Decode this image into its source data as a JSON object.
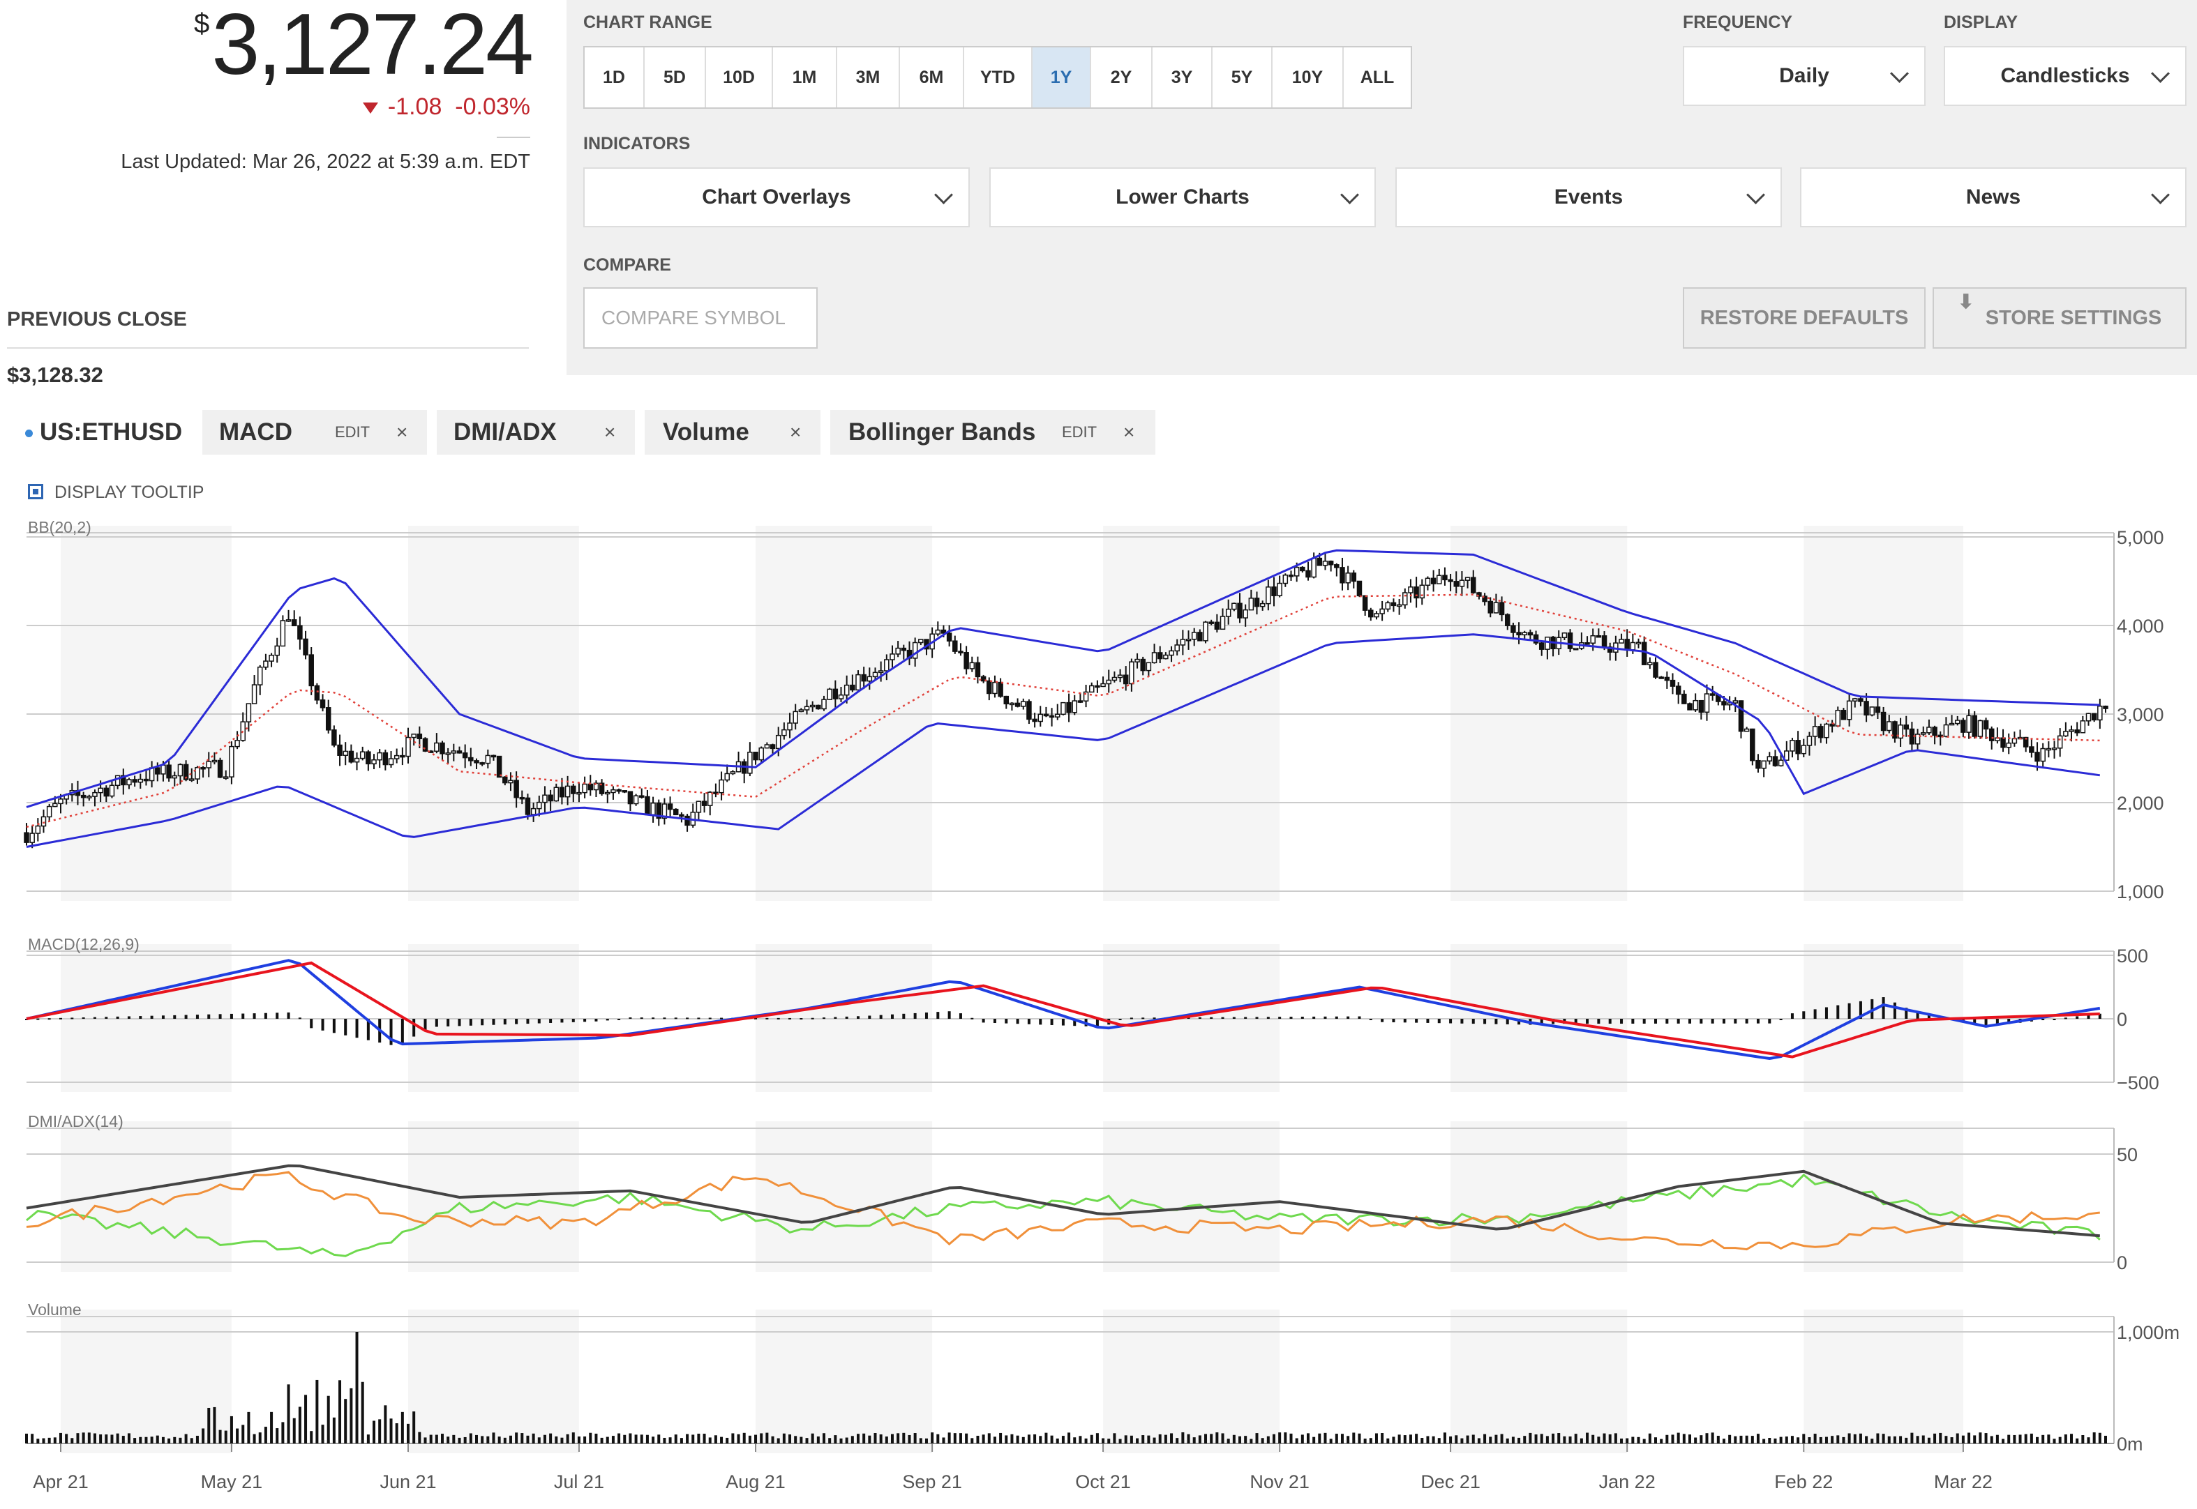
{
  "quote": {
    "currency_symbol": "$",
    "price": "3,127.24",
    "change": "-1.08",
    "change_pct": "-0.03%",
    "last_updated": "Last Updated: Mar 26, 2022 at 5:39 a.m. EDT",
    "previous_close_label": "PREVIOUS CLOSE",
    "previous_close_value": "$3,128.32",
    "change_color": "#c0262d"
  },
  "controls": {
    "chart_range_label": "CHART RANGE",
    "ranges": [
      "1D",
      "5D",
      "10D",
      "1M",
      "3M",
      "6M",
      "YTD",
      "1Y",
      "2Y",
      "3Y",
      "5Y",
      "10Y",
      "ALL"
    ],
    "active_range": "1Y",
    "frequency_label": "FREQUENCY",
    "frequency_value": "Daily",
    "display_label": "DISPLAY",
    "display_value": "Candlesticks",
    "indicators_label": "INDICATORS",
    "indicator_menus": [
      "Chart Overlays",
      "Lower Charts",
      "Events",
      "News"
    ],
    "compare_label": "COMPARE",
    "compare_placeholder": "COMPARE SYMBOL",
    "restore_defaults": "RESTORE DEFAULTS",
    "store_settings": "STORE SETTINGS"
  },
  "tabs": {
    "symbol": "US:ETHUSD",
    "items": [
      {
        "name": "MACD",
        "edit": "EDIT",
        "close": "×"
      },
      {
        "name": "DMI/ADX",
        "close": "×"
      },
      {
        "name": "Volume",
        "close": "×"
      },
      {
        "name": "Bollinger Bands",
        "edit": "EDIT",
        "close": "×"
      }
    ],
    "display_tooltip": "DISPLAY TOOLTIP"
  },
  "chart_data": {
    "type": "candlestick",
    "x_tick_labels": [
      "Apr 21",
      "May 21",
      "Jun 21",
      "Jul 21",
      "Aug 21",
      "Sep 21",
      "Oct 21",
      "Nov 21",
      "Dec 21",
      "Jan 22",
      "Feb 22",
      "Mar 22"
    ],
    "colors": {
      "bands": "#2b2bd6",
      "midline": "#e0413a",
      "macd": "#1f3fe0",
      "signal": "#e8141e",
      "adx": "#444444",
      "plus_di": "#6fd94e",
      "minus_di": "#f0903a",
      "candle": "#111111"
    },
    "panels": {
      "price": {
        "label": "BB(20,2)",
        "y_ticks": [
          "5,000",
          "4,000",
          "3,000",
          "2,000",
          "1,000"
        ],
        "ylim": [
          1000,
          5000
        ],
        "close_points": [
          [
            "Mar 26 21",
            1660
          ],
          [
            "Apr 1 21",
            2000
          ],
          [
            "Apr 15 21",
            2300
          ],
          [
            "Apr 30 21",
            2400
          ],
          [
            "May 5 21",
            3300
          ],
          [
            "May 11 21",
            4150
          ],
          [
            "May 19 21",
            2600
          ],
          [
            "May 25 21",
            2450
          ],
          [
            "Jun 3 21",
            2700
          ],
          [
            "Jun 15 21",
            2500
          ],
          [
            "Jun 22 21",
            1900
          ],
          [
            "Jul 1 21",
            2200
          ],
          [
            "Jul 20 21",
            1800
          ],
          [
            "Aug 1 21",
            2550
          ],
          [
            "Aug 14 21",
            3250
          ],
          [
            "Sep 3 21",
            3900
          ],
          [
            "Sep 9 21",
            3400
          ],
          [
            "Sep 21 21",
            2900
          ],
          [
            "Oct 1 21",
            3300
          ],
          [
            "Oct 20 21",
            4000
          ],
          [
            "Nov 1 21",
            4450
          ],
          [
            "Nov 10 21",
            4750
          ],
          [
            "Nov 18 21",
            4100
          ],
          [
            "Dec 1 21",
            4600
          ],
          [
            "Dec 8 21",
            4250
          ],
          [
            "Dec 15 21",
            3850
          ],
          [
            "Jan 3 22",
            3750
          ],
          [
            "Jan 10 22",
            3150
          ],
          [
            "Jan 20 22",
            3100
          ],
          [
            "Jan 24 22",
            2350
          ],
          [
            "Feb 1 22",
            2700
          ],
          [
            "Feb 10 22",
            3100
          ],
          [
            "Feb 20 22",
            2700
          ],
          [
            "Mar 1 22",
            2900
          ],
          [
            "Mar 15 22",
            2550
          ],
          [
            "Mar 26 22",
            3127
          ]
        ],
        "upper_band_points": [
          [
            "Mar 26 21",
            1950
          ],
          [
            "Apr 20 21",
            2450
          ],
          [
            "May 12 21",
            4400
          ],
          [
            "May 20 21",
            4550
          ],
          [
            "Jun 10 21",
            3000
          ],
          [
            "Jul 1 21",
            2500
          ],
          [
            "Aug 1 21",
            2400
          ],
          [
            "Aug 20 21",
            3300
          ],
          [
            "Sep 5 21",
            3980
          ],
          [
            "Oct 1 21",
            3700
          ],
          [
            "Nov 10 21",
            4850
          ],
          [
            "Dec 5 21",
            4800
          ],
          [
            "Jan 1 22",
            4150
          ],
          [
            "Jan 20 22",
            3800
          ],
          [
            "Feb 10 22",
            3200
          ],
          [
            "Mar 26 22",
            3100
          ]
        ],
        "lower_band_points": [
          [
            "Mar 26 21",
            1500
          ],
          [
            "Apr 20 21",
            1800
          ],
          [
            "May 10 21",
            2200
          ],
          [
            "Jun 1 21",
            1600
          ],
          [
            "Jul 1 21",
            1950
          ],
          [
            "Aug 5 21",
            1700
          ],
          [
            "Sep 1 21",
            2900
          ],
          [
            "Oct 1 21",
            2700
          ],
          [
            "Nov 10 21",
            3800
          ],
          [
            "Dec 5 21",
            3900
          ],
          [
            "Jan 5 22",
            3700
          ],
          [
            "Jan 25 22",
            2900
          ],
          [
            "Feb 1 22",
            2100
          ],
          [
            "Feb 20 22",
            2600
          ],
          [
            "Mar 26 22",
            2300
          ]
        ]
      },
      "macd": {
        "label": "MACD(12,26,9)",
        "y_ticks": [
          "500",
          "0",
          "−500"
        ],
        "ylim": [
          -500,
          500
        ],
        "macd_points": [
          [
            "Mar 26 21",
            0
          ],
          [
            "May 12 21",
            470
          ],
          [
            "May 30 21",
            -200
          ],
          [
            "Jul 5 21",
            -150
          ],
          [
            "Aug 10 21",
            80
          ],
          [
            "Sep 5 21",
            300
          ],
          [
            "Oct 1 21",
            -80
          ],
          [
            "Nov 15 21",
            250
          ],
          [
            "Dec 15 21",
            -30
          ],
          [
            "Jan 27 22",
            -320
          ],
          [
            "Feb 15 22",
            110
          ],
          [
            "Mar 5 22",
            -60
          ],
          [
            "Mar 26 22",
            90
          ]
        ],
        "signal_points": [
          [
            "Mar 26 21",
            0
          ],
          [
            "May 15 21",
            440
          ],
          [
            "Jun 5 21",
            -120
          ],
          [
            "Jul 10 21",
            -130
          ],
          [
            "Aug 20 21",
            140
          ],
          [
            "Sep 10 21",
            260
          ],
          [
            "Oct 5 21",
            -60
          ],
          [
            "Nov 18 21",
            250
          ],
          [
            "Dec 20 21",
            -20
          ],
          [
            "Jan 30 22",
            -300
          ],
          [
            "Feb 20 22",
            -10
          ],
          [
            "Mar 26 22",
            40
          ]
        ]
      },
      "dmi_adx": {
        "label": "DMI/ADX(14)",
        "y_ticks": [
          "50",
          "0"
        ],
        "ylim": [
          0,
          60
        ],
        "adx_points": [
          [
            "Mar 26 21",
            25
          ],
          [
            "May 12 21",
            45
          ],
          [
            "Jun 10 21",
            30
          ],
          [
            "Jul 10 21",
            33
          ],
          [
            "Aug 10 21",
            18
          ],
          [
            "Sep 5 21",
            35
          ],
          [
            "Oct 1 21",
            22
          ],
          [
            "Nov 1 21",
            28
          ],
          [
            "Dec 10 21",
            15
          ],
          [
            "Jan 10 22",
            35
          ],
          [
            "Feb 1 22",
            42
          ],
          [
            "Feb 25 22",
            18
          ],
          [
            "Mar 26 22",
            12
          ]
        ],
        "plus_di_points": [
          [
            "Mar 26 21",
            22
          ],
          [
            "May 1 21",
            10
          ],
          [
            "May 20 21",
            2
          ],
          [
            "Jun 10 21",
            25
          ],
          [
            "Jul 10 21",
            30
          ],
          [
            "Aug 10 21",
            15
          ],
          [
            "Sep 5 21",
            25
          ],
          [
            "Oct 1 21",
            28
          ],
          [
            "Nov 1 21",
            20
          ],
          [
            "Dec 10 21",
            20
          ],
          [
            "Jan 1 22",
            28
          ],
          [
            "Feb 1 22",
            38
          ],
          [
            "Mar 1 22",
            20
          ],
          [
            "Mar 26 22",
            12
          ]
        ],
        "minus_di_points": [
          [
            "Mar 26 21",
            18
          ],
          [
            "May 10 21",
            40
          ],
          [
            "Jun 1 21",
            20
          ],
          [
            "Jul 1 21",
            18
          ],
          [
            "Aug 1 21",
            40
          ],
          [
            "Sep 5 21",
            10
          ],
          [
            "Oct 1 21",
            18
          ],
          [
            "Nov 1 21",
            15
          ],
          [
            "Dec 10 21",
            20
          ],
          [
            "Jan 5 22",
            10
          ],
          [
            "Feb 1 22",
            8
          ],
          [
            "Mar 1 22",
            20
          ],
          [
            "Mar 26 22",
            22
          ]
        ]
      },
      "volume": {
        "label": "Volume",
        "y_ticks": [
          "1,000m",
          "0m"
        ],
        "ylim": [
          0,
          1100
        ]
      }
    }
  }
}
